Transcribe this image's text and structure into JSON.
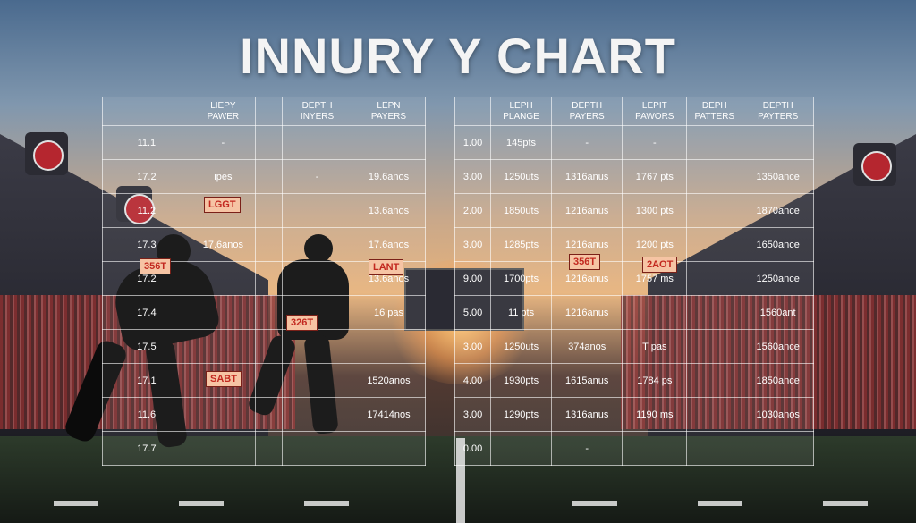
{
  "title": "INNURY  Y CHART",
  "left_table": {
    "headers": [
      {
        "lines": [
          ""
        ]
      },
      {
        "lines": [
          "LIEPY",
          "PAWER"
        ]
      },
      {
        "lines": [
          ""
        ]
      },
      {
        "lines": [
          "DEPTH",
          "INYERS"
        ]
      },
      {
        "lines": [
          "LEPN",
          "PAYERS"
        ]
      }
    ],
    "rows": [
      {
        "label": "11.1",
        "c1": "-",
        "c2": "",
        "c3": "",
        "c4": ""
      },
      {
        "label": "17.2",
        "c1": "ipes",
        "c2": "",
        "c3": "-",
        "c4": "19.6anos"
      },
      {
        "label": "11.2",
        "c1": "",
        "c2": "",
        "c3": "",
        "c4": "13.6anos"
      },
      {
        "label": "17.3",
        "c1": "17.6anos",
        "c2": "",
        "c3": "",
        "c4": "17.6anos"
      },
      {
        "label": "17.2",
        "c1": "",
        "c2": "",
        "c3": "",
        "c4": "13.6anos"
      },
      {
        "label": "17.4",
        "c1": "",
        "c2": "",
        "c3": "",
        "c4": "16 pas"
      },
      {
        "label": "17.5",
        "c1": "",
        "c2": "",
        "c3": "",
        "c4": ""
      },
      {
        "label": "17.1",
        "c1": "",
        "c2": "",
        "c3": "",
        "c4": "1520anos"
      },
      {
        "label": "11.6",
        "c1": "",
        "c2": "",
        "c3": "",
        "c4": "17414nos"
      },
      {
        "label": "17.7",
        "c1": "",
        "c2": "",
        "c3": "",
        "c4": ""
      }
    ]
  },
  "right_table": {
    "headers": [
      {
        "lines": [
          ""
        ]
      },
      {
        "lines": [
          "LEPH",
          "PLANGE"
        ]
      },
      {
        "lines": [
          "DEPTH",
          "PAYERS"
        ]
      },
      {
        "lines": [
          "LEPIT",
          "PAWORS"
        ]
      },
      {
        "lines": [
          "DEPH",
          "PATTERS"
        ]
      },
      {
        "lines": [
          "DEPTH",
          "PAYTERS"
        ]
      }
    ],
    "rows": [
      {
        "label": "1.00",
        "c1": "145pts",
        "c2": "-",
        "c3": "-",
        "c4": "",
        "c5": ""
      },
      {
        "label": "3.00",
        "c1": "1250uts",
        "c2": "1316anus",
        "c3": "1767 pts",
        "c4": "",
        "c5": "1350ance"
      },
      {
        "label": "2.00",
        "c1": "1850uts",
        "c2": "1216anus",
        "c3": "1300 pts",
        "c4": "",
        "c5": "1870ance"
      },
      {
        "label": "3.00",
        "c1": "1285pts",
        "c2": "1216anus",
        "c3": "1200 pts",
        "c4": "",
        "c5": "1650ance"
      },
      {
        "label": "9.00",
        "c1": "1700pts",
        "c2": "1216anus",
        "c3": "1757 ms",
        "c4": "",
        "c5": "1250ance"
      },
      {
        "label": "5.00",
        "c1": "11 pts",
        "c2": "1216anus",
        "c3": "",
        "c4": "",
        "c5": "1560ant"
      },
      {
        "label": "3.00",
        "c1": "1250uts",
        "c2": "374anos",
        "c3": "T pas",
        "c4": "",
        "c5": "1560ance"
      },
      {
        "label": "4.00",
        "c1": "1930pts",
        "c2": "1615anus",
        "c3": "1784 ps",
        "c4": "",
        "c5": "1850ance"
      },
      {
        "label": "3.00",
        "c1": "1290pts",
        "c2": "1316anus",
        "c3": "1190 ms",
        "c4": "",
        "c5": "1030anos"
      },
      {
        "label": "0.00",
        "c1": "",
        "c2": "-",
        "c3": "",
        "c4": "",
        "c5": ""
      }
    ]
  },
  "tags": {
    "lggt": "LGGT",
    "356t_left": "356T",
    "lant": "LANT",
    "326t": "326T",
    "sast": "SABT",
    "356t_right": "356T",
    "2aot": "2AOT"
  }
}
